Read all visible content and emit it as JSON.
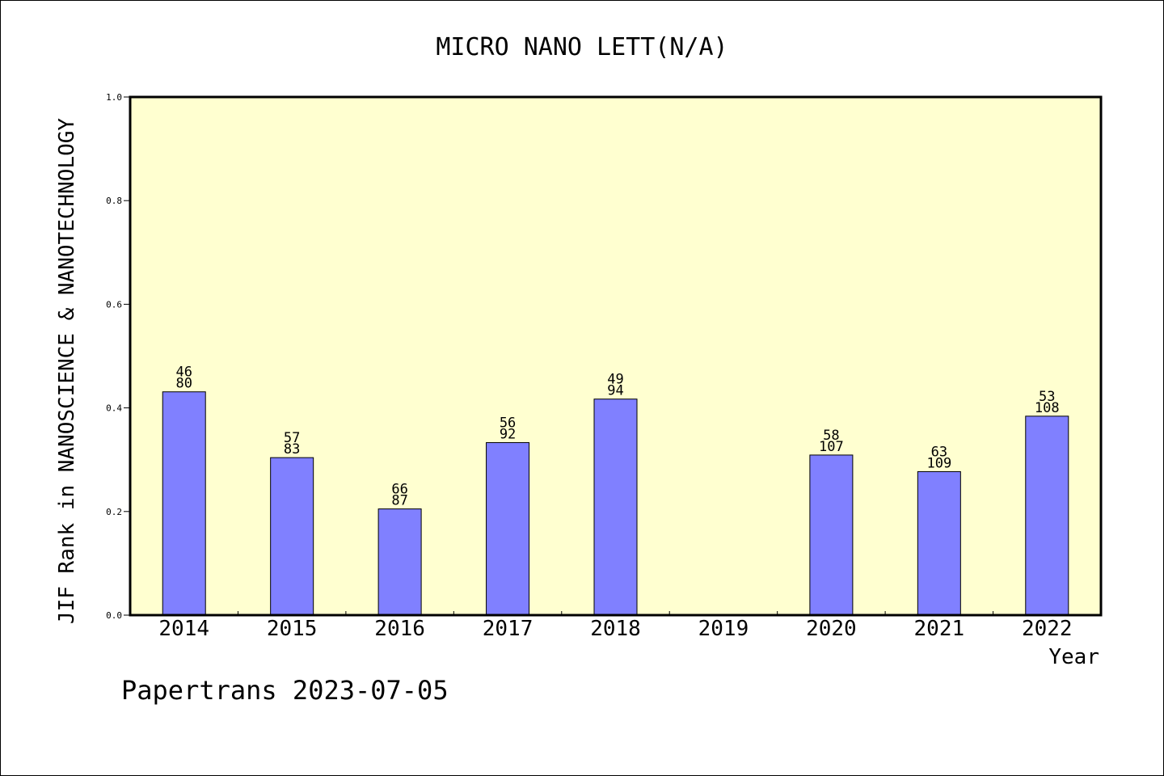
{
  "chart_data": {
    "type": "bar",
    "title": "MICRO NANO LETT(N/A)",
    "xlabel": "Year",
    "ylabel": "JIF Rank in NANOSCIENCE & NANOTECHNOLOGY",
    "ylim": [
      0,
      1.0
    ],
    "yticks": [
      "0.0",
      "0.2",
      "0.4",
      "0.6",
      "0.8",
      "1.0"
    ],
    "grid": false,
    "categories": [
      "2014",
      "2015",
      "2016",
      "2017",
      "2018",
      "2019",
      "2020",
      "2021",
      "2022"
    ],
    "values": [
      0.431,
      0.304,
      0.205,
      0.333,
      0.417,
      null,
      0.309,
      0.277,
      0.384
    ],
    "rank_labels": [
      "46",
      "57",
      "66",
      "56",
      "49",
      "",
      "58",
      "63",
      "53"
    ],
    "total_labels": [
      "80",
      "83",
      "87",
      "92",
      "94",
      "",
      "107",
      "109",
      "108"
    ],
    "colors": {
      "bar_fill": "#8080ff",
      "plot_background": "#ffffd0",
      "axis": "#000000"
    }
  },
  "footer": "Papertrans 2023-07-05"
}
